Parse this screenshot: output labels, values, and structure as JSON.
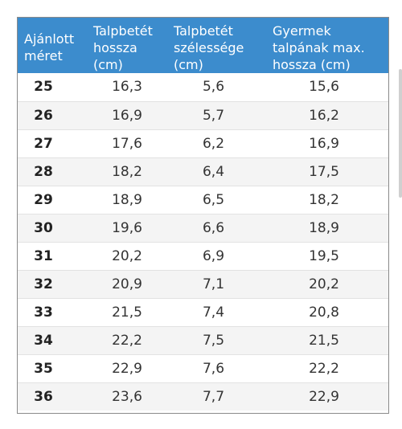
{
  "headers": {
    "size": [
      "Ajánlott",
      "méret"
    ],
    "insole_length": [
      "Talpbetét",
      "hossza",
      "(cm)"
    ],
    "insole_width": [
      "Talpbetét",
      "szélessége",
      "(cm)"
    ],
    "child_sole_max": [
      "Gyermek",
      "talpának max.",
      "hossza (cm)"
    ]
  },
  "rows": [
    {
      "size": "25",
      "length": "16,3",
      "width": "5,6",
      "max": "15,6"
    },
    {
      "size": "26",
      "length": "16,9",
      "width": "5,7",
      "max": "16,2"
    },
    {
      "size": "27",
      "length": "17,6",
      "width": "6,2",
      "max": "16,9"
    },
    {
      "size": "28",
      "length": "18,2",
      "width": "6,4",
      "max": "17,5"
    },
    {
      "size": "29",
      "length": "18,9",
      "width": "6,5",
      "max": "18,2"
    },
    {
      "size": "30",
      "length": "19,6",
      "width": "6,6",
      "max": "18,9"
    },
    {
      "size": "31",
      "length": "20,2",
      "width": "6,9",
      "max": "19,5"
    },
    {
      "size": "32",
      "length": "20,9",
      "width": "7,1",
      "max": "20,2"
    },
    {
      "size": "33",
      "length": "21,5",
      "width": "7,4",
      "max": "20,8"
    },
    {
      "size": "34",
      "length": "22,2",
      "width": "7,5",
      "max": "21,5"
    },
    {
      "size": "35",
      "length": "22,9",
      "width": "7,6",
      "max": "22,2"
    },
    {
      "size": "36",
      "length": "23,6",
      "width": "7,7",
      "max": "22,9"
    }
  ],
  "colors": {
    "header_bg": "#3c8ccd",
    "header_text": "#ffffff",
    "row_alt_bg": "#f4f4f4"
  }
}
